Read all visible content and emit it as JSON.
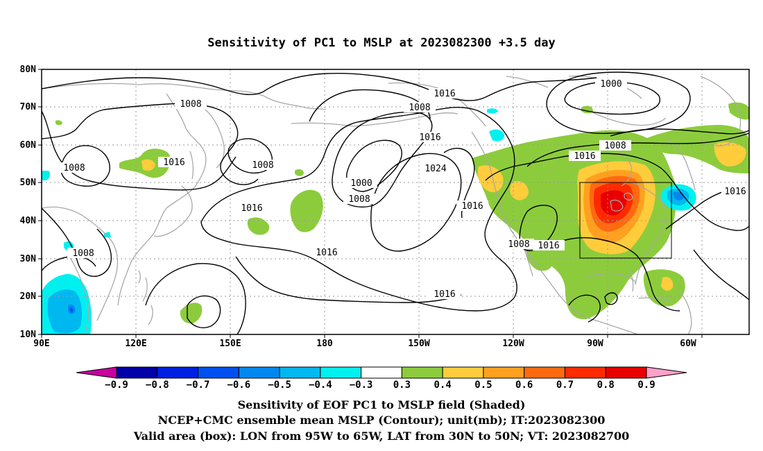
{
  "title": "Sensitivity of PC1 to MSLP at 2023082300 +3.5 day",
  "lat_ticks": [
    "80N",
    "70N",
    "60N",
    "50N",
    "40N",
    "30N",
    "20N",
    "10N"
  ],
  "lon_ticks": [
    "90E",
    "120E",
    "150E",
    "180",
    "150W",
    "120W",
    "90W",
    "60W"
  ],
  "contour_labels": [
    {
      "id": "c1",
      "text": "1016"
    },
    {
      "id": "c2",
      "text": "1000"
    },
    {
      "id": "c3",
      "text": "1008"
    },
    {
      "id": "c4",
      "text": "1008"
    },
    {
      "id": "c5",
      "text": "1016"
    },
    {
      "id": "c6",
      "text": "1008"
    },
    {
      "id": "c7",
      "text": "1008"
    },
    {
      "id": "c8",
      "text": "1016"
    },
    {
      "id": "c9",
      "text": "1016"
    },
    {
      "id": "c10",
      "text": "1000"
    },
    {
      "id": "c11",
      "text": "1008"
    },
    {
      "id": "c12",
      "text": "1024"
    },
    {
      "id": "c13",
      "text": "1016"
    },
    {
      "id": "c14",
      "text": "1008"
    },
    {
      "id": "c15",
      "text": "1016"
    },
    {
      "id": "c16",
      "text": "1016"
    },
    {
      "id": "c17",
      "text": "1016"
    },
    {
      "id": "c18",
      "text": "1008"
    },
    {
      "id": "c19",
      "text": "1016"
    },
    {
      "id": "c20",
      "text": "1016"
    }
  ],
  "colorbar": {
    "labels": [
      "-0.9",
      "-0.8",
      "-0.7",
      "-0.6",
      "-0.5",
      "-0.4",
      "-0.3",
      "0.3",
      "0.4",
      "0.5",
      "0.6",
      "0.7",
      "0.8",
      "0.9"
    ],
    "colors": [
      "#0000a8",
      "#0020e0",
      "#0050f0",
      "#0088f0",
      "#00b8f0",
      "#00f0f0",
      "#ffffff",
      "#8ccc3c",
      "#ffcc3c",
      "#ffa020",
      "#ff6a10",
      "#ff2a00",
      "#e80000"
    ],
    "low_end_color": "#c800a0",
    "high_end_color": "#ffa0c8"
  },
  "shading_colors": {
    "green": "#8ccc3c",
    "yellow": "#ffcc3c",
    "orange": "#ffa020",
    "dark_orange": "#ff6a10",
    "red": "#ff2a00",
    "deep_red": "#e80000",
    "cyan": "#00f0f0",
    "light_blue": "#00b8f0",
    "blue": "#0088f0",
    "mid_blue": "#0050f0"
  },
  "captions": [
    "Sensitivity of EOF PC1 to MSLP field (Shaded)",
    "NCEP+CMC ensemble mean MSLP (Contour); unit(mb); IT:2023082300",
    "Valid area (box): LON from 95W to 65W, LAT from 30N to 50N; VT: 2023082700"
  ]
}
